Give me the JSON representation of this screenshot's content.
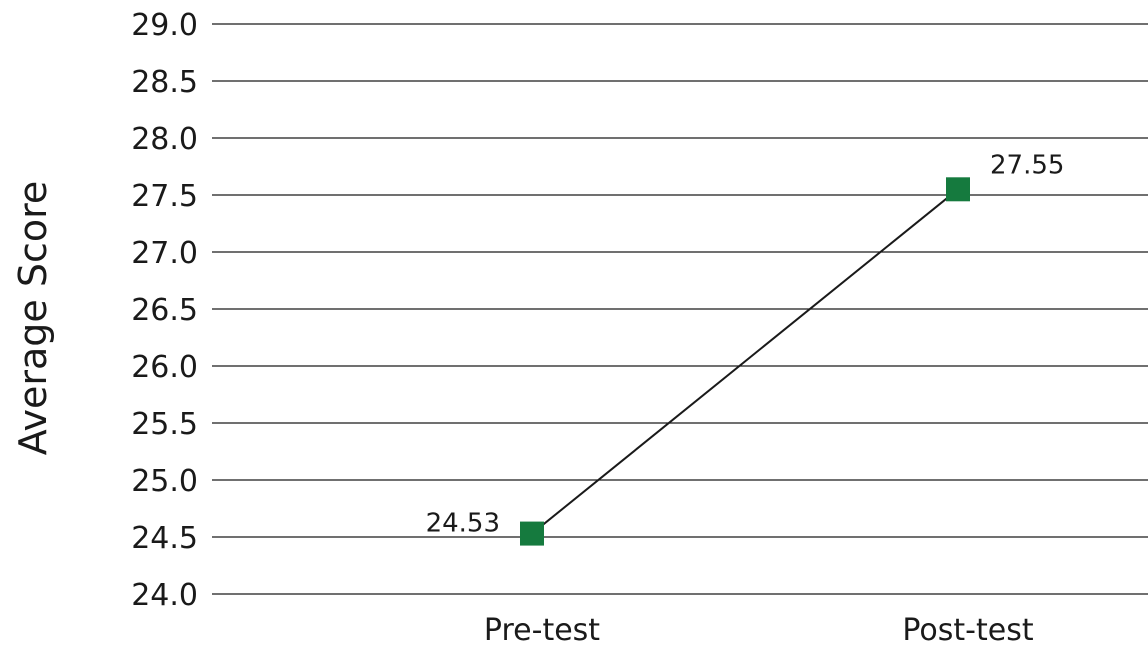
{
  "chart_data": {
    "type": "line",
    "categories": [
      "Pre-test",
      "Post-test"
    ],
    "series": [
      {
        "values": [
          24.53,
          27.55
        ],
        "color": "#157a3e",
        "marker": "square"
      }
    ],
    "data_labels": [
      "24.53",
      "27.55"
    ],
    "ylabel": "Average Score",
    "xlabel": "",
    "ylim": [
      24.0,
      29.0
    ],
    "yticks": [
      24.0,
      24.5,
      25.0,
      25.5,
      26.0,
      26.5,
      27.0,
      27.5,
      28.0,
      28.5,
      29.0
    ],
    "ytick_labels": [
      "24.0",
      "24.5",
      "25.0",
      "25.5",
      "26.0",
      "26.5",
      "27.0",
      "27.5",
      "28.0",
      "28.5",
      "29.0"
    ],
    "grid": true,
    "legend": "none"
  }
}
